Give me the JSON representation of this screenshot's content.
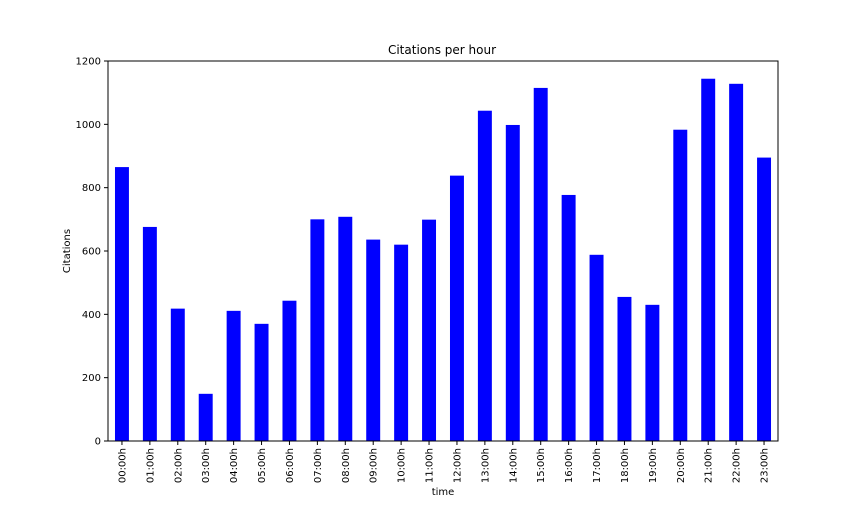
{
  "chart_data": {
    "type": "bar",
    "title": "Citations per hour",
    "xlabel": "time",
    "ylabel": "Citations",
    "categories": [
      "00:00h",
      "01:00h",
      "02:00h",
      "03:00h",
      "04:00h",
      "05:00h",
      "06:00h",
      "07:00h",
      "08:00h",
      "09:00h",
      "10:00h",
      "11:00h",
      "12:00h",
      "13:00h",
      "14:00h",
      "15:00h",
      "16:00h",
      "17:00h",
      "18:00h",
      "19:00h",
      "20:00h",
      "21:00h",
      "22:00h",
      "23:00h"
    ],
    "values": [
      865,
      676,
      418,
      149,
      411,
      370,
      443,
      700,
      708,
      636,
      620,
      699,
      838,
      1043,
      998,
      1115,
      777,
      588,
      455,
      430,
      983,
      1144,
      1128,
      895
    ],
    "ylim": [
      0,
      1200
    ],
    "yticks": [
      0,
      200,
      400,
      600,
      800,
      1000,
      1200
    ],
    "bar_color": "#0000ff",
    "grid": false,
    "legend": "none"
  }
}
